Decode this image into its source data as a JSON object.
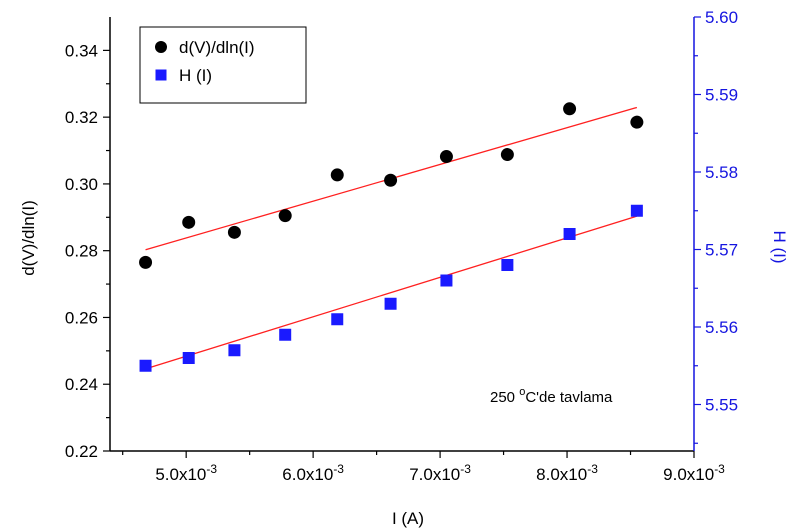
{
  "chart_data": {
    "type": "scatter",
    "xlabel": "I (A)",
    "ylabel_left": "d(V)/dln(I)",
    "ylabel_right": "H (I)",
    "annotation": {
      "prefix": "250 ",
      "sup": "o",
      "suffix": "C'de tavlama"
    },
    "xlim": [
      0.0044,
      0.009
    ],
    "ylim_left": [
      0.22,
      0.35
    ],
    "ylim_right": [
      5.544,
      5.6
    ],
    "x_ticks": [
      {
        "value": 0.005,
        "mantissa": "5.0x10",
        "exp": "-3"
      },
      {
        "value": 0.006,
        "mantissa": "6.0x10",
        "exp": "-3"
      },
      {
        "value": 0.007,
        "mantissa": "7.0x10",
        "exp": "-3"
      },
      {
        "value": 0.008,
        "mantissa": "8.0x10",
        "exp": "-3"
      },
      {
        "value": 0.009,
        "mantissa": "9.0x10",
        "exp": "-3"
      }
    ],
    "y_left_ticks": [
      "0.22",
      "0.24",
      "0.26",
      "0.28",
      "0.30",
      "0.32",
      "0.34"
    ],
    "y_right_ticks": [
      "5.55",
      "5.56",
      "5.57",
      "5.58",
      "5.59",
      "5.60"
    ],
    "grid": false,
    "legend_position": "top-left",
    "series": [
      {
        "name": "d(V)/dln(I)",
        "axis": "left",
        "marker": "circle",
        "color": "#000000",
        "fit_color": "#ff2020",
        "x": [
          0.00468,
          0.00502,
          0.00538,
          0.00578,
          0.00619,
          0.00661,
          0.00705,
          0.00753,
          0.00802,
          0.00855
        ],
        "y": [
          0.2765,
          0.2885,
          0.2855,
          0.2905,
          0.3027,
          0.3011,
          0.3082,
          0.3088,
          0.3225,
          0.3185
        ],
        "fit": {
          "x": [
            0.00468,
            0.00855
          ],
          "y": [
            0.2803,
            0.3229
          ]
        }
      },
      {
        "name": "H (I)",
        "axis": "right",
        "marker": "square",
        "color": "#1a1aff",
        "fit_color": "#ff2020",
        "x": [
          0.00468,
          0.00502,
          0.00538,
          0.00578,
          0.00619,
          0.00661,
          0.00705,
          0.00753,
          0.00802,
          0.00855
        ],
        "y": [
          5.555,
          5.556,
          5.557,
          5.559,
          5.561,
          5.563,
          5.566,
          5.568,
          5.572,
          5.575
        ],
        "fit": {
          "x": [
            0.00468,
            0.00855
          ],
          "y": [
            5.5546,
            5.5743
          ]
        }
      }
    ]
  }
}
